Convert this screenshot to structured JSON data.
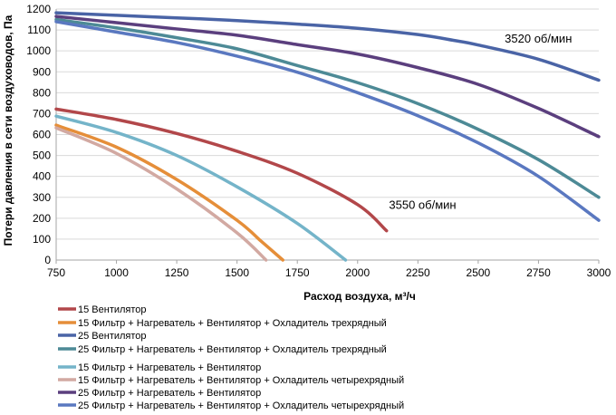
{
  "chart_data": {
    "type": "line",
    "title": "",
    "xlabel": "Расход воздуха, м³/ч",
    "ylabel": "Потери давления в сети воздуховодов, Па",
    "xlim": [
      750,
      3000
    ],
    "ylim": [
      0,
      1200
    ],
    "xticks": [
      750,
      1000,
      1250,
      1500,
      1750,
      2000,
      2250,
      2500,
      2750,
      3000
    ],
    "yticks": [
      0,
      100,
      200,
      300,
      400,
      500,
      600,
      700,
      800,
      900,
      1000,
      1100,
      1200
    ],
    "grid": "y",
    "legend_position": "bottom",
    "annotations": [
      {
        "text": "3520 об/мин",
        "x": 2610,
        "y": 1040
      },
      {
        "text": "3550 об/мин",
        "x": 2130,
        "y": 245
      }
    ],
    "series": [
      {
        "name": "15 Вентилятор",
        "color": "#b2474a",
        "x": [
          750,
          1000,
          1250,
          1500,
          1750,
          2000,
          2120
        ],
        "y": [
          722,
          672,
          605,
          520,
          415,
          265,
          140
        ]
      },
      {
        "name": "15 Фильтр + Нагреватель + Вентилятор + Охладитель трехрядный",
        "color": "#e58e39",
        "x": [
          750,
          1000,
          1250,
          1500,
          1600,
          1690
        ],
        "y": [
          645,
          540,
          385,
          190,
          90,
          0
        ]
      },
      {
        "name": "25 Вентилятор",
        "color": "#4a64a6",
        "x": [
          750,
          1000,
          1250,
          1500,
          1750,
          2000,
          2250,
          2400,
          2500,
          2750,
          3000
        ],
        "y": [
          1182,
          1170,
          1158,
          1145,
          1128,
          1108,
          1078,
          1050,
          1028,
          960,
          860
        ]
      },
      {
        "name": "25 Фильтр + Нагреватель + Вентилятор + Охладитель трехрядный",
        "color": "#4d8a96",
        "x": [
          750,
          1000,
          1250,
          1500,
          1750,
          2000,
          2250,
          2500,
          2750,
          3000
        ],
        "y": [
          1150,
          1110,
          1063,
          1010,
          930,
          848,
          748,
          625,
          480,
          300
        ]
      },
      {
        "name": "15 Фильтр + Нагреватель + Вентилятор",
        "color": "#74b4c9",
        "x": [
          750,
          1000,
          1250,
          1500,
          1750,
          1950
        ],
        "y": [
          688,
          610,
          500,
          350,
          175,
          0
        ]
      },
      {
        "name": "15 Фильтр + Нагреватель + Вентилятор + Охладитель четырехрядный",
        "color": "#d2a9a2",
        "x": [
          750,
          1000,
          1250,
          1500,
          1620
        ],
        "y": [
          632,
          510,
          340,
          130,
          0
        ]
      },
      {
        "name": "25 Фильтр + Нагреватель + Вентилятор",
        "color": "#5b3f7e",
        "x": [
          750,
          1000,
          1250,
          1500,
          1750,
          2000,
          2250,
          2500,
          2750,
          3000
        ],
        "y": [
          1165,
          1135,
          1105,
          1075,
          1030,
          985,
          920,
          840,
          725,
          590
        ]
      },
      {
        "name": "25 Фильтр + Нагреватель + Вентилятор + Охладитель четырехрядный",
        "color": "#5a78c0",
        "x": [
          750,
          1000,
          1250,
          1500,
          1750,
          2000,
          2250,
          2500,
          2750,
          3000
        ],
        "y": [
          1140,
          1090,
          1040,
          975,
          898,
          800,
          690,
          560,
          400,
          190
        ]
      }
    ]
  }
}
